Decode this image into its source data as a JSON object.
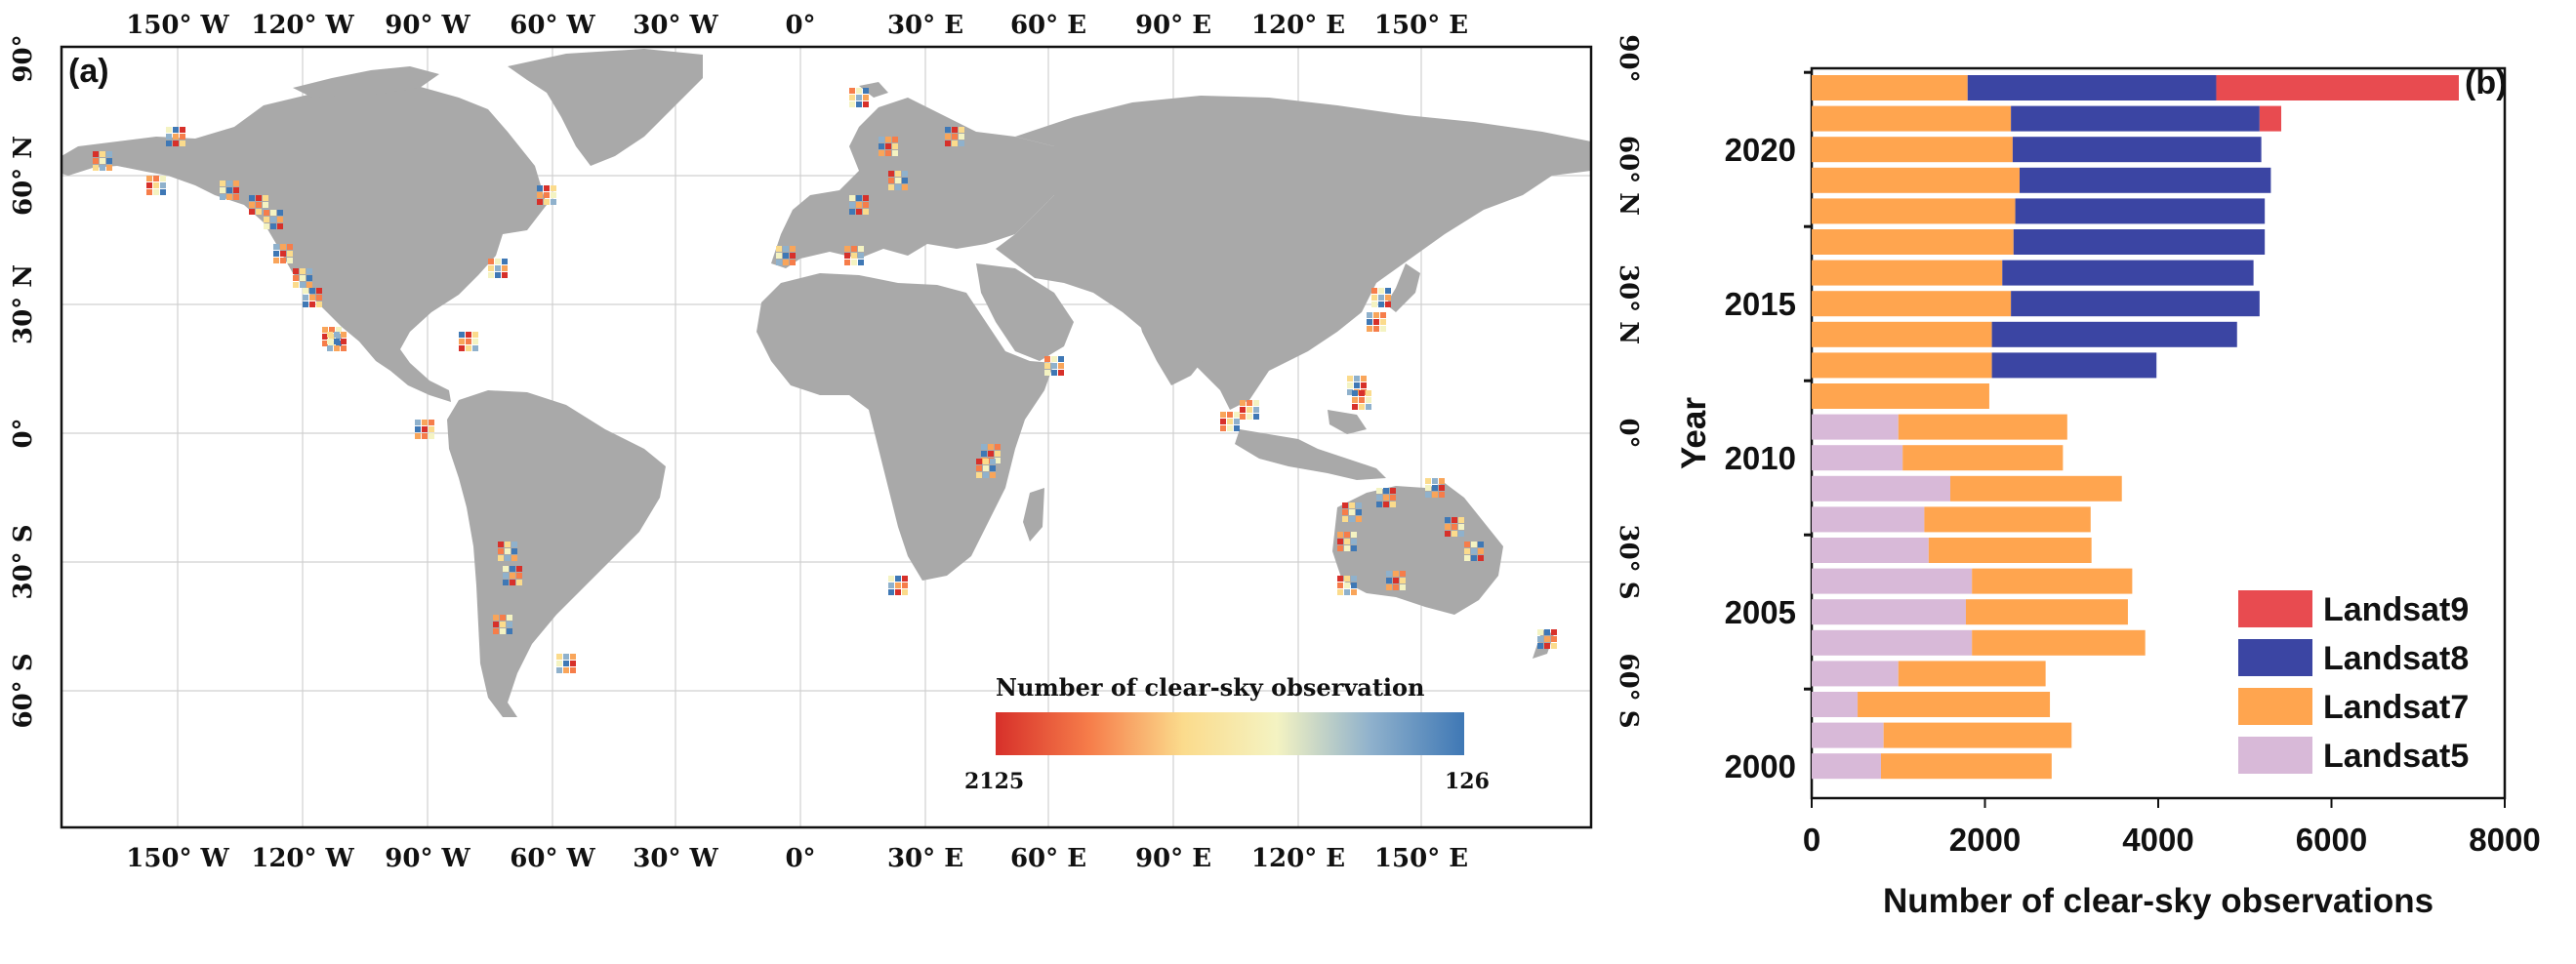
{
  "colors": {
    "land": "#a9a9a9",
    "gridline": "#d0d0d0",
    "landsat9": "#e84b50",
    "landsat8": "#3b45a3",
    "landsat7": "#ffa54f",
    "landsat5": "#d8b9d8"
  },
  "map": {
    "panel_label": "(a)",
    "lon_ticks": [
      "150° W",
      "120° W",
      "90° W",
      "60° W",
      "30° W",
      "0°",
      "30° E",
      "60° E",
      "90° E",
      "120° E",
      "150° E"
    ],
    "lat_ticks": [
      "90°",
      "60° N",
      "30° N",
      "0°",
      "30° S",
      "60° S"
    ],
    "colorbar": {
      "title": "Number of clear-sky observation",
      "min_label": "2125",
      "max_label": "126",
      "colors": [
        "#d7302a",
        "#f67d4a",
        "#fbdb8c",
        "#f4f3c2",
        "#8fb1cc",
        "#3f78b5"
      ]
    }
  },
  "chart_data": {
    "type": "bar",
    "orientation": "horizontal",
    "stacked": true,
    "panel_label": "(b)",
    "xlabel": "Number of clear-sky observations",
    "ylabel": "Year",
    "xlim": [
      0,
      8000
    ],
    "x_ticks": [
      "0",
      "2000",
      "4000",
      "6000",
      "8000"
    ],
    "y_ticks": [
      "2000",
      "2005",
      "2010",
      "2015",
      "2020"
    ],
    "legend_position": "bottom-right",
    "legend_order": [
      "Landsat9",
      "Landsat8",
      "Landsat7",
      "Landsat5"
    ],
    "categories": [
      2022,
      2021,
      2020,
      2019,
      2018,
      2017,
      2016,
      2015,
      2014,
      2013,
      2012,
      2011,
      2010,
      2009,
      2008,
      2007,
      2006,
      2005,
      2004,
      2003,
      2002,
      2001,
      2000
    ],
    "series": [
      {
        "name": "Landsat5",
        "color": "#d8b9d8",
        "values": [
          0,
          0,
          0,
          0,
          0,
          0,
          0,
          0,
          0,
          0,
          0,
          1000,
          1050,
          1600,
          1300,
          1350,
          1850,
          1780,
          1850,
          1000,
          530,
          830,
          800
        ]
      },
      {
        "name": "Landsat7",
        "color": "#ffa54f",
        "values": [
          1800,
          2300,
          2320,
          2400,
          2350,
          2330,
          2200,
          2300,
          2080,
          2080,
          2050,
          1950,
          1850,
          1980,
          1920,
          1880,
          1850,
          1870,
          2000,
          1700,
          2220,
          2170,
          1970
        ]
      },
      {
        "name": "Landsat8",
        "color": "#3b45a3",
        "values": [
          2870,
          2870,
          2870,
          2900,
          2880,
          2900,
          2900,
          2870,
          2830,
          1900,
          0,
          0,
          0,
          0,
          0,
          0,
          0,
          0,
          0,
          0,
          0,
          0,
          0
        ]
      },
      {
        "name": "Landsat9",
        "color": "#e84b50",
        "values": [
          2800,
          250,
          0,
          0,
          0,
          0,
          0,
          0,
          0,
          0,
          0,
          0,
          0,
          0,
          0,
          0,
          0,
          0,
          0,
          0,
          0,
          0,
          0
        ]
      }
    ]
  }
}
